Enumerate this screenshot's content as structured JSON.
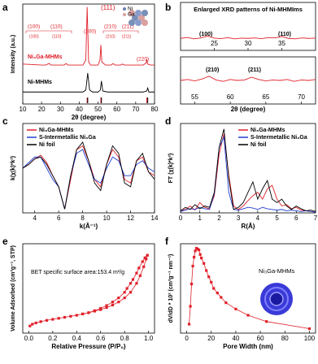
{
  "chart_data": [
    {
      "type": "line",
      "label": "a",
      "xlabel": "2θ (degree)",
      "ylabel": "Intensity (a.u.)",
      "xlim": [
        10,
        80
      ],
      "xticks": [
        10,
        20,
        30,
        40,
        50,
        60,
        70,
        80
      ],
      "ylim": [
        0,
        100
      ],
      "series": [
        {
          "name": "Ni₃Ga-MHMs",
          "color": "#e0202a",
          "x": [
            10,
            20,
            22,
            24,
            25,
            26,
            30,
            32,
            33,
            34,
            36,
            40,
            42,
            43.5,
            44.2,
            45,
            46,
            50,
            51,
            51.5,
            52,
            54,
            57,
            58,
            59,
            62,
            63,
            64,
            66,
            70,
            74,
            75.5,
            75.9,
            76.3,
            78,
            80
          ],
          "values": [
            40,
            39,
            39,
            40.5,
            39,
            39,
            39,
            39,
            40.5,
            39,
            39,
            39,
            39,
            44,
            97,
            42,
            39,
            39,
            44,
            59,
            42,
            39,
            39,
            40.5,
            39,
            39,
            40,
            39,
            39,
            39,
            39,
            41,
            45,
            40,
            39,
            39
          ]
        },
        {
          "name": "Ni-MHMs",
          "color": "#000000",
          "x": [
            10,
            30,
            42,
            43.5,
            44.5,
            45.5,
            47,
            50,
            51.2,
            51.8,
            52.5,
            55,
            74,
            75.8,
            76.4,
            77,
            80
          ],
          "values": [
            12,
            12,
            12,
            14,
            31,
            14,
            12,
            12,
            14,
            23,
            13,
            12,
            12,
            13,
            16,
            12,
            12
          ]
        }
      ],
      "reference_lines": [
        {
          "color": "#e0202a",
          "x": [
            44.2,
            51.5,
            75.9
          ]
        },
        {
          "color": "#000000",
          "x": [
            44.5,
            51.8,
            76.4
          ]
        }
      ],
      "annotations": [
        "(111)",
        "(100)",
        "(110)",
        "(200)",
        "(210)",
        "(211)",
        "(220)",
        "(100)",
        "(110)",
        "(210)",
        "(211)",
        "Ni",
        "Ga"
      ]
    },
    {
      "type": "line",
      "label": "b",
      "title": "Enlarged XRD patterns of Ni-MHMIms",
      "xlim": [
        20,
        40
      ],
      "xticks": [
        25,
        30,
        35
      ],
      "ylim": [
        0,
        20
      ],
      "series": [
        {
          "color": "#e0202a",
          "x": [
            20,
            21,
            22,
            23,
            24,
            25,
            26,
            27,
            28,
            29,
            30,
            31,
            32,
            33,
            34,
            35,
            36,
            37,
            38,
            39,
            40
          ],
          "values": [
            5,
            5.4,
            4.8,
            5.2,
            6,
            5.1,
            4.9,
            5.3,
            4.8,
            5.1,
            5,
            5.2,
            4.9,
            5.3,
            5.2,
            5.8,
            5,
            4.8,
            5.2,
            5,
            5.1
          ]
        }
      ],
      "annotations": [
        "(100)",
        "(110)"
      ]
    },
    {
      "type": "line",
      "xlabel": "2θ (degree)",
      "xlim": [
        53,
        72
      ],
      "xticks": [
        55,
        60,
        65,
        70
      ],
      "ylim": [
        0,
        10
      ],
      "series": [
        {
          "color": "#e0202a",
          "x": [
            53,
            54,
            55,
            56,
            57,
            58,
            59,
            60,
            61,
            62,
            63,
            64,
            65,
            66,
            67,
            68,
            69,
            70,
            71,
            72
          ],
          "values": [
            5,
            5.2,
            4.9,
            5.3,
            5.9,
            5.1,
            4.8,
            5.2,
            5,
            5.1,
            5.7,
            5.2,
            4.9,
            5.1,
            5,
            5.2,
            4.8,
            5.1,
            5,
            5.2
          ]
        }
      ],
      "annotations": [
        "(210)",
        "(211)"
      ]
    },
    {
      "type": "line",
      "label": "c",
      "xlabel": "k(Å⁻¹)",
      "ylabel": "k(χ(k)*k²)",
      "xlim": [
        3,
        14
      ],
      "xticks": [
        4,
        6,
        8,
        10,
        12,
        14
      ],
      "ylim": [
        -12,
        12
      ],
      "legend": "upper left",
      "series": [
        {
          "name": "Ni₃Ga-MHMs",
          "color": "#e0202a",
          "x": [
            3,
            3.5,
            4,
            4.5,
            5,
            5.5,
            6,
            6.5,
            7,
            7.5,
            8,
            8.5,
            9,
            9.5,
            10,
            10.5,
            11,
            11.5,
            12,
            12.5,
            13,
            13.5,
            14
          ],
          "values": [
            0,
            1,
            2.5,
            3.5,
            1.5,
            -2,
            -5,
            -11,
            -3,
            5,
            6,
            2,
            -3,
            -5,
            1,
            5,
            3,
            -3,
            -4,
            2,
            3,
            -1,
            -2
          ]
        },
        {
          "name": "S-Intermetallic Ni₃Ga",
          "color": "#2040d0",
          "x": [
            3,
            3.5,
            4,
            4.5,
            5,
            5.5,
            6,
            6.5,
            7,
            7.5,
            8,
            8.5,
            9,
            9.5,
            10,
            10.5,
            11,
            11.5,
            12,
            12.5,
            13,
            13.5,
            14
          ],
          "values": [
            0,
            1.5,
            3,
            3,
            0,
            -3,
            -5,
            -11,
            -2,
            4,
            5,
            1,
            -3,
            -4,
            0,
            3,
            2,
            -2,
            -2,
            1,
            2,
            0,
            -1
          ]
        },
        {
          "name": "Ni foil",
          "color": "#000000",
          "x": [
            3,
            3.5,
            4,
            4.5,
            5,
            5.5,
            6,
            6.5,
            7,
            7.5,
            8,
            8.5,
            9,
            9.5,
            10,
            10.5,
            11,
            11.5,
            12,
            12.5,
            13,
            13.5,
            14
          ],
          "values": [
            0,
            1,
            2.5,
            3,
            1,
            -2,
            -5,
            -11,
            -2,
            5,
            7,
            2,
            -4,
            -6,
            1,
            6,
            4,
            -4,
            -5,
            2,
            4,
            -1,
            -3
          ]
        }
      ]
    },
    {
      "type": "line",
      "label": "d",
      "xlabel": "R(Å)",
      "ylabel": "FT (χ(k)*k²)",
      "xlim": [
        0,
        7
      ],
      "xticks": [
        0,
        1,
        2,
        3,
        4,
        5,
        6,
        7
      ],
      "ylim": [
        0,
        13
      ],
      "legend": "upper right",
      "series": [
        {
          "name": "Ni₃Ga-MHMs",
          "color": "#e0202a",
          "x": [
            0,
            0.25,
            0.5,
            0.75,
            1,
            1.25,
            1.5,
            1.75,
            2,
            2.25,
            2.5,
            2.75,
            3,
            3.25,
            3.5,
            3.75,
            4,
            4.25,
            4.5,
            4.75,
            5,
            5.25,
            5.5,
            5.75,
            6,
            6.25,
            6.5,
            6.75,
            7
          ],
          "values": [
            0.3,
            0.5,
            1,
            0.4,
            1.5,
            0.8,
            0.6,
            2.5,
            8.5,
            11.5,
            5.5,
            1,
            0.5,
            1,
            1.8,
            2.5,
            3,
            2,
            3.5,
            4,
            2,
            1,
            1.2,
            0.6,
            0.8,
            0.4,
            0.3,
            0.2,
            0.1
          ]
        },
        {
          "name": "S-Intermetallic Ni₃Ga",
          "color": "#2040d0",
          "x": [
            0,
            0.25,
            0.5,
            0.75,
            1,
            1.25,
            1.5,
            1.75,
            2,
            2.25,
            2.5,
            2.75,
            3,
            3.25,
            3.5,
            3.75,
            4,
            4.25,
            4.5,
            4.75,
            5,
            5.25,
            5.5,
            5.75,
            6,
            6.25,
            6.5,
            6.75,
            7
          ],
          "values": [
            0.2,
            0.4,
            0.6,
            0.5,
            0.8,
            0.6,
            0.5,
            2.8,
            9.5,
            11,
            3,
            0.5,
            0.4,
            0.6,
            0.8,
            0.7,
            0.5,
            0.8,
            0.6,
            0.5,
            0.4,
            0.5,
            0.3,
            0.4,
            0.3,
            0.2,
            0.3,
            0.2,
            0.1
          ]
        },
        {
          "name": "Ni foil",
          "color": "#000000",
          "x": [
            0,
            0.25,
            0.5,
            0.75,
            1,
            1.25,
            1.5,
            1.75,
            2,
            2.25,
            2.5,
            2.75,
            3,
            3.25,
            3.5,
            3.75,
            4,
            4.25,
            4.5,
            4.75,
            5,
            5.25,
            5.5,
            5.75,
            6,
            6.25,
            6.5,
            6.75,
            7
          ],
          "values": [
            0.3,
            0.8,
            0.5,
            1.2,
            0.6,
            1,
            0.8,
            3,
            9.5,
            12.2,
            5,
            0.5,
            0.8,
            1.5,
            3,
            4.5,
            2,
            3.5,
            4.7,
            2,
            1.5,
            2,
            1,
            0.5,
            1,
            0.6,
            0.3,
            0.4,
            0.2
          ]
        }
      ]
    },
    {
      "type": "line",
      "label": "e",
      "xlabel": "Relative Pressure (P/P₀)",
      "ylabel": "Volume Adsorbed (cm³g⁻¹, STP)",
      "xlim": [
        -0.05,
        1.05
      ],
      "xticks": [
        {
          "value": 0,
          "label": "0.0"
        },
        0.2,
        0.4,
        0.6,
        0.8,
        {
          "value": 1,
          "label": "1.0"
        }
      ],
      "ylim": [
        0,
        350
      ],
      "marker": "square",
      "series": [
        {
          "color": "#e0202a",
          "x": [
            0.01,
            0.03,
            0.06,
            0.1,
            0.15,
            0.2,
            0.25,
            0.3,
            0.35,
            0.4,
            0.45,
            0.5,
            0.55,
            0.6,
            0.65,
            0.7,
            0.75,
            0.8,
            0.85,
            0.9,
            0.93,
            0.96,
            0.98,
            0.99
          ],
          "values": [
            28,
            35,
            40,
            45,
            50,
            54,
            58,
            62,
            66,
            70,
            75,
            80,
            86,
            92,
            100,
            110,
            122,
            138,
            160,
            195,
            225,
            260,
            290,
            305
          ]
        },
        {
          "color": "#e0202a",
          "x": [
            0.99,
            0.97,
            0.95,
            0.92,
            0.9,
            0.87,
            0.85,
            0.82,
            0.8,
            0.75,
            0.7,
            0.65,
            0.6,
            0.55,
            0.5,
            0.45
          ],
          "values": [
            305,
            295,
            280,
            255,
            235,
            210,
            195,
            175,
            160,
            138,
            122,
            108,
            97,
            88,
            80,
            75
          ]
        }
      ],
      "annotations": [
        "BET specific surface area:153.4 m²/g"
      ]
    },
    {
      "type": "line",
      "label": "f",
      "xlabel": "Pore Width (nm)",
      "ylabel": "dV/dD * 10² (cm³g⁻¹ nm⁻¹)",
      "xlim": [
        -5,
        105
      ],
      "xticks": [
        0,
        20,
        40,
        60,
        80,
        100
      ],
      "ylim": [
        0,
        1
      ],
      "marker": "square",
      "series": [
        {
          "color": "#e0202a",
          "x": [
            2,
            3,
            4,
            5,
            6,
            7,
            8,
            9,
            10,
            11,
            12,
            14,
            16,
            18,
            20,
            22,
            25,
            28,
            32,
            40,
            50,
            65,
            100
          ],
          "values": [
            0.1,
            0.3,
            0.55,
            0.75,
            0.85,
            0.92,
            0.95,
            0.94,
            0.93,
            0.88,
            0.84,
            0.78,
            0.7,
            0.63,
            0.57,
            0.5,
            0.45,
            0.4,
            0.34,
            0.27,
            0.2,
            0.13,
            0.05
          ]
        }
      ],
      "annotations": [
        "Ni₃Ga-MHMs"
      ]
    }
  ]
}
